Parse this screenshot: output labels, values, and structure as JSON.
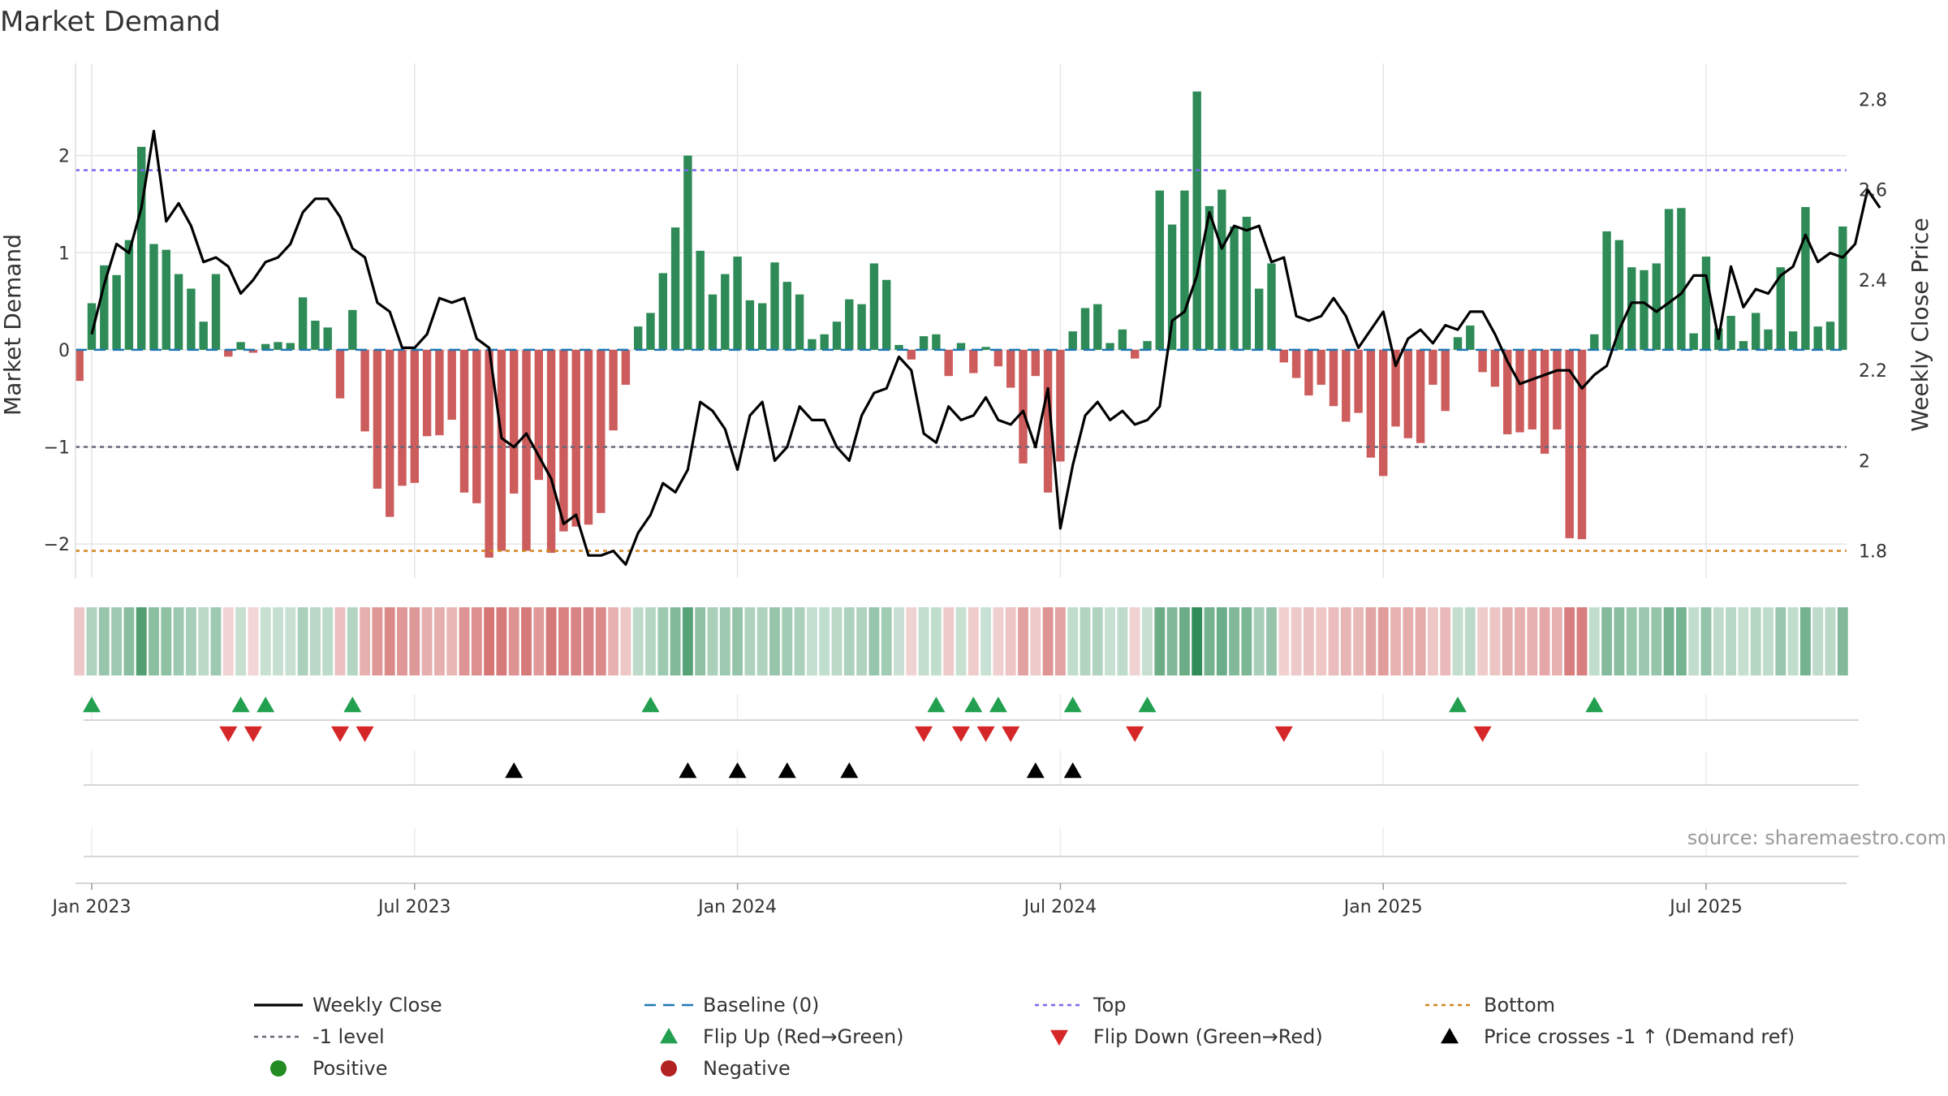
{
  "chart_data": {
    "type": "bar",
    "title": "Market Demand",
    "ylabel_left": "Market Demand",
    "ylabel_right": "Weekly Close Price",
    "ylim_left": [
      -2.35,
      2.95
    ],
    "ylim_right": [
      1.74,
      2.88
    ],
    "left_ticks": [
      2,
      1,
      0,
      -1,
      -2
    ],
    "left_tick_labels": [
      "2",
      "1",
      "0",
      "−1",
      "−2"
    ],
    "right_ticks": [
      2.8,
      2.6,
      2.4,
      2.2,
      2.0,
      1.8
    ],
    "right_tick_labels": [
      "2.8",
      "2.6",
      "2.4",
      "2.2",
      "2",
      "1.8"
    ],
    "x_tick_labels": [
      "Jan 2023",
      "Jul 2023",
      "Jan 2024",
      "Jul 2024",
      "Jan 2025",
      "Jul 2025"
    ],
    "x_tick_weeks": [
      0,
      26,
      52,
      78,
      104,
      130
    ],
    "first_week_offset": -1,
    "demand": [
      -0.32,
      0.48,
      0.87,
      0.77,
      1.13,
      2.09,
      1.09,
      1.03,
      0.78,
      0.63,
      0.29,
      0.78,
      -0.07,
      0.08,
      -0.03,
      0.06,
      0.08,
      0.07,
      0.54,
      0.3,
      0.23,
      -0.5,
      0.41,
      -0.84,
      -1.43,
      -1.72,
      -1.4,
      -1.37,
      -0.89,
      -0.88,
      -0.72,
      -1.47,
      -1.58,
      -2.14,
      -2.07,
      -1.48,
      -2.07,
      -1.34,
      -2.09,
      -1.87,
      -1.82,
      -1.8,
      -1.68,
      -0.83,
      -0.36,
      0.24,
      0.38,
      0.79,
      1.26,
      2.0,
      1.02,
      0.57,
      0.78,
      0.96,
      0.51,
      0.48,
      0.9,
      0.7,
      0.57,
      0.11,
      0.16,
      0.29,
      0.52,
      0.47,
      0.89,
      0.72,
      0.05,
      -0.1,
      0.14,
      0.16,
      -0.27,
      0.07,
      -0.24,
      0.03,
      -0.17,
      -0.39,
      -1.17,
      -0.27,
      -1.47,
      -1.15,
      0.19,
      0.43,
      0.47,
      0.07,
      0.21,
      -0.09,
      0.09,
      1.64,
      1.29,
      1.64,
      2.66,
      1.48,
      1.65,
      1.27,
      1.37,
      0.63,
      0.89,
      -0.13,
      -0.29,
      -0.47,
      -0.36,
      -0.58,
      -0.74,
      -0.65,
      -1.11,
      -1.3,
      -0.79,
      -0.91,
      -0.96,
      -0.36,
      -0.63,
      0.13,
      0.25,
      -0.23,
      -0.38,
      -0.87,
      -0.85,
      -0.82,
      -1.07,
      -0.82,
      -1.94,
      -1.95,
      0.16,
      1.22,
      1.13,
      0.85,
      0.82,
      0.89,
      1.45,
      1.46,
      0.17,
      0.96,
      0.22,
      0.35,
      0.09,
      0.38,
      0.21,
      0.85,
      0.19,
      1.47,
      0.24,
      0.29,
      1.27
    ],
    "price_start_week": 0,
    "price": [
      2.28,
      2.39,
      2.48,
      2.46,
      2.56,
      2.73,
      2.53,
      2.57,
      2.52,
      2.44,
      2.45,
      2.43,
      2.37,
      2.4,
      2.44,
      2.45,
      2.48,
      2.55,
      2.58,
      2.58,
      2.54,
      2.47,
      2.45,
      2.35,
      2.33,
      2.25,
      2.25,
      2.28,
      2.36,
      2.35,
      2.36,
      2.27,
      2.25,
      2.05,
      2.03,
      2.06,
      2.01,
      1.96,
      1.86,
      1.88,
      1.79,
      1.79,
      1.8,
      1.77,
      1.84,
      1.88,
      1.95,
      1.93,
      1.98,
      2.13,
      2.11,
      2.07,
      1.98,
      2.1,
      2.13,
      2.0,
      2.03,
      2.12,
      2.09,
      2.09,
      2.03,
      2.0,
      2.1,
      2.15,
      2.16,
      2.23,
      2.2,
      2.06,
      2.04,
      2.12,
      2.09,
      2.1,
      2.14,
      2.09,
      2.08,
      2.11,
      2.03,
      2.16,
      1.85,
      1.99,
      2.1,
      2.13,
      2.09,
      2.11,
      2.08,
      2.09,
      2.12,
      2.31,
      2.33,
      2.41,
      2.55,
      2.47,
      2.52,
      2.51,
      2.52,
      2.44,
      2.45,
      2.32,
      2.31,
      2.32,
      2.36,
      2.32,
      2.25,
      2.29,
      2.33,
      2.21,
      2.27,
      2.29,
      2.26,
      2.3,
      2.29,
      2.33,
      2.33,
      2.28,
      2.22,
      2.17,
      2.18,
      2.19,
      2.2,
      2.2,
      2.16,
      2.19,
      2.21,
      2.29,
      2.35,
      2.35,
      2.33,
      2.35,
      2.37,
      2.41,
      2.41,
      2.27,
      2.43,
      2.34,
      2.38,
      2.37,
      2.41,
      2.43,
      2.5,
      2.44,
      2.46,
      2.45,
      2.48,
      2.6,
      2.56
    ],
    "top_level": 1.85,
    "bottom_level": -2.07,
    "minus_one_level": -1.0,
    "baseline": 0,
    "flip_up_weeks": [
      0,
      12,
      14,
      21,
      45,
      68,
      71,
      73,
      79,
      85,
      110,
      121
    ],
    "flip_down_weeks": [
      11,
      13,
      20,
      22,
      67,
      70,
      72,
      74,
      84,
      96,
      112
    ],
    "price_cross_weeks": [
      34,
      48,
      52,
      56,
      61,
      76,
      79
    ],
    "legend": [
      [
        "Weekly Close",
        "Baseline (0)",
        "Top",
        "Bottom"
      ],
      [
        "-1 level",
        "Flip Up (Red→Green)",
        "Flip Down (Green→Red)",
        "Price crosses -1 ↑ (Demand ref)"
      ],
      [
        "Positive",
        "Negative"
      ]
    ],
    "source": "source: sharemaestro.com",
    "colors": {
      "positive": "#2e8b57",
      "negative": "#cd5c5c",
      "price": "#000000",
      "top": "#7b68ee",
      "bottom": "#d4851f",
      "minus_one": "#666677",
      "baseline": "#1f77b4",
      "flip_up": "#22a050",
      "flip_down": "#d62728",
      "positive_dot": "#228b22",
      "negative_dot": "#b22222"
    }
  }
}
